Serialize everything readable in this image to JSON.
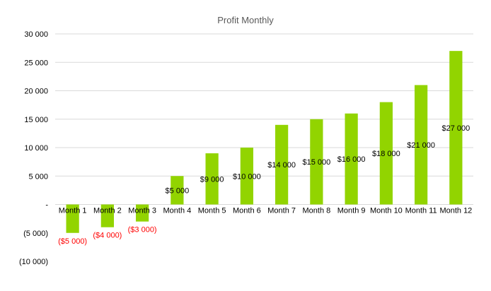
{
  "chart_data": {
    "type": "bar",
    "title": "Profit Monthly",
    "categories": [
      "Month 1",
      "Month 2",
      "Month 3",
      "Month 4",
      "Month 5",
      "Month 6",
      "Month 7",
      "Month 8",
      "Month 9",
      "Month 10",
      "Month 11",
      "Month 12"
    ],
    "values": [
      -5000,
      -4000,
      -3000,
      5000,
      9000,
      10000,
      14000,
      15000,
      16000,
      18000,
      21000,
      27000
    ],
    "data_labels": [
      "($5 000)",
      "($4 000)",
      "($3 000)",
      "$5 000",
      "$9 000",
      "$10 000",
      "$14 000",
      "$15 000",
      "$16 000",
      "$18 000",
      "$21 000",
      "$27 000"
    ],
    "y_ticks": [
      30000,
      25000,
      20000,
      15000,
      10000,
      5000,
      0,
      -5000,
      -10000
    ],
    "y_tick_labels": [
      "30 000",
      "25 000",
      "20 000",
      "15 000",
      "10 000",
      "5 000",
      "-",
      "(5 000)",
      "(10 000)"
    ],
    "ylim": [
      -10000,
      30000
    ],
    "xlabel": "",
    "ylabel": "",
    "grid": true,
    "legend": false,
    "bar_color": "#92d400",
    "negative_label_color": "#ff0000",
    "positive_label_color": "#000000",
    "gridline_color": "#d9d9d9",
    "title_color": "#595959"
  }
}
